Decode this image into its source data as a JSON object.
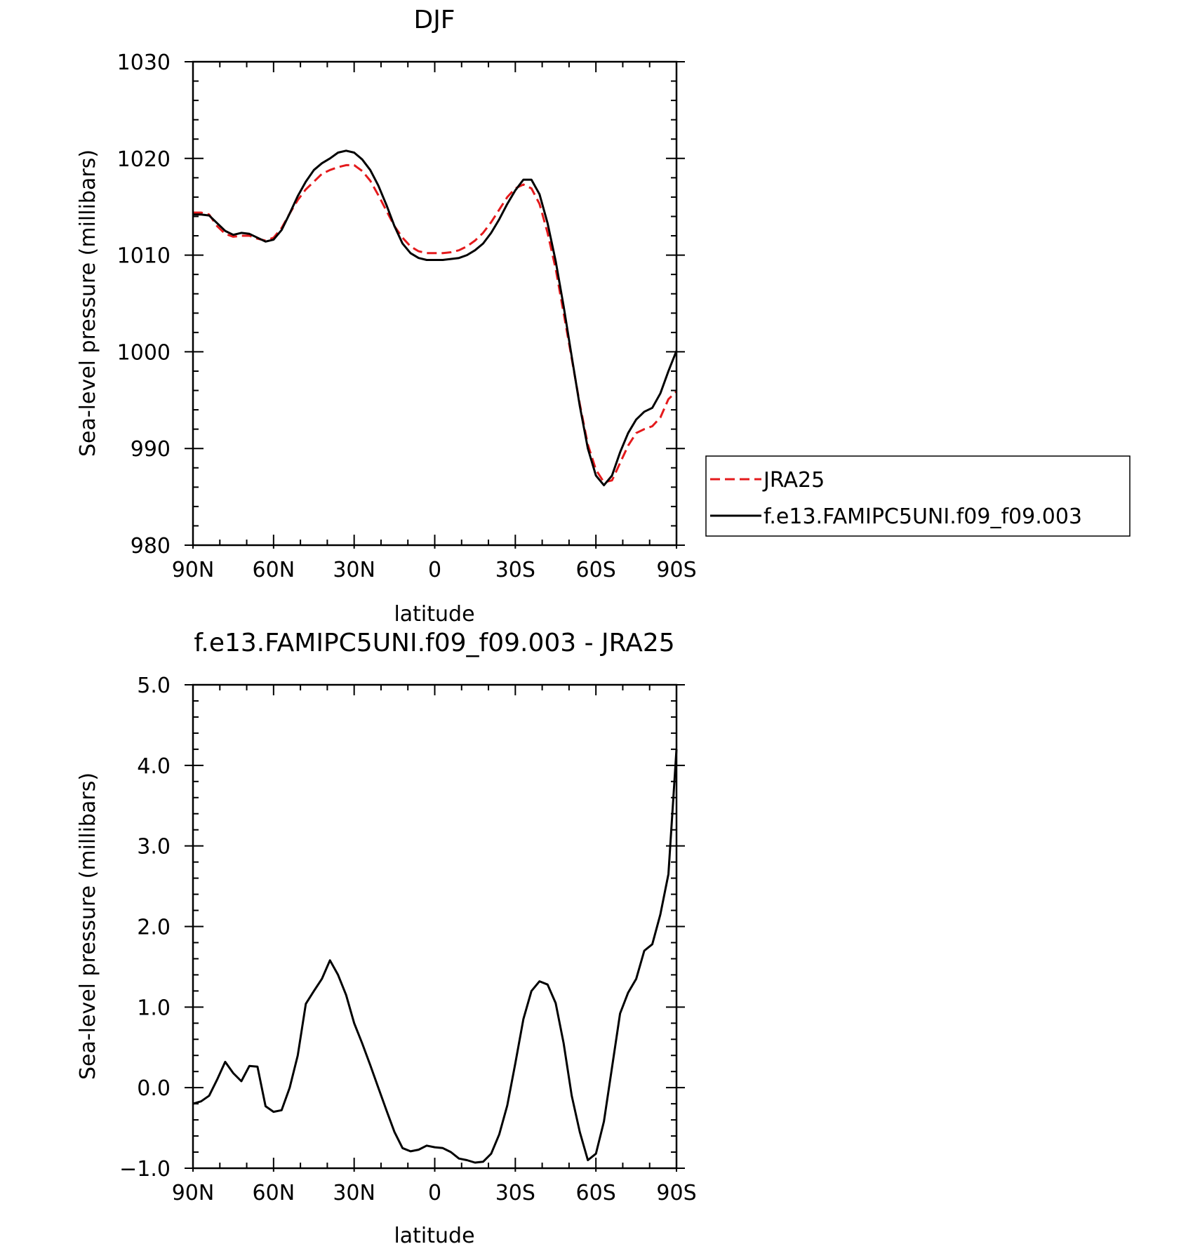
{
  "chart_data": [
    {
      "type": "line",
      "title": "DJF",
      "xlabel": "latitude",
      "ylabel": "Sea-level pressure (millibars)",
      "xlim": [
        90,
        -90
      ],
      "ylim": [
        980,
        1030
      ],
      "x_ticks": [
        {
          "value": 90,
          "label": "90N"
        },
        {
          "value": 60,
          "label": "60N"
        },
        {
          "value": 30,
          "label": "30N"
        },
        {
          "value": 0,
          "label": "0"
        },
        {
          "value": -30,
          "label": "30S"
        },
        {
          "value": -60,
          "label": "60S"
        },
        {
          "value": -90,
          "label": "90S"
        }
      ],
      "y_ticks": [
        {
          "value": 1030,
          "label": "1030"
        },
        {
          "value": 1020,
          "label": "1020"
        },
        {
          "value": 1010,
          "label": "1010"
        },
        {
          "value": 1000,
          "label": "1000"
        },
        {
          "value": 990,
          "label": "990"
        },
        {
          "value": 980,
          "label": "980"
        }
      ],
      "grid": false,
      "legend_position": "right",
      "series": [
        {
          "name": "JRA25",
          "color": "#e41a1c",
          "dash": "dashed",
          "x": [
            90,
            87,
            84,
            81,
            78,
            75,
            72,
            69,
            66,
            63,
            60,
            57,
            54,
            51,
            48,
            45,
            42,
            39,
            36,
            33,
            30,
            27,
            24,
            21,
            18,
            15,
            12,
            9,
            6,
            3,
            0,
            -3,
            -6,
            -9,
            -12,
            -15,
            -18,
            -21,
            -24,
            -27,
            -30,
            -33,
            -36,
            -39,
            -42,
            -45,
            -48,
            -51,
            -54,
            -57,
            -60,
            -63,
            -66,
            -69,
            -72,
            -75,
            -78,
            -81,
            -84,
            -87,
            -90
          ],
          "y": [
            1014.4,
            1014.4,
            1014.2,
            1013.0,
            1012.2,
            1011.9,
            1012.0,
            1012.0,
            1011.7,
            1011.5,
            1011.8,
            1012.8,
            1014.3,
            1015.7,
            1016.8,
            1017.6,
            1018.4,
            1018.8,
            1019.1,
            1019.3,
            1019.3,
            1018.7,
            1017.7,
            1016.2,
            1014.6,
            1013.0,
            1011.8,
            1010.9,
            1010.4,
            1010.2,
            1010.2,
            1010.2,
            1010.3,
            1010.5,
            1010.9,
            1011.5,
            1012.3,
            1013.4,
            1014.7,
            1016.0,
            1016.9,
            1017.3,
            1016.9,
            1015.3,
            1012.3,
            1008.6,
            1004.0,
            999.3,
            994.6,
            990.4,
            987.8,
            986.5,
            986.7,
            988.5,
            990.3,
            991.6,
            992.0,
            992.3,
            993.2,
            995.1,
            995.9
          ]
        },
        {
          "name": "f.e13.FAMIPC5UNI.f09_f09.003",
          "color": "#000000",
          "dash": "solid",
          "x": [
            90,
            87,
            84,
            81,
            78,
            75,
            72,
            69,
            66,
            63,
            60,
            57,
            54,
            51,
            48,
            45,
            42,
            39,
            36,
            33,
            30,
            27,
            24,
            21,
            18,
            15,
            12,
            9,
            6,
            3,
            0,
            -3,
            -6,
            -9,
            -12,
            -15,
            -18,
            -21,
            -24,
            -27,
            -30,
            -33,
            -36,
            -39,
            -42,
            -45,
            -48,
            -51,
            -54,
            -57,
            -60,
            -63,
            -66,
            -69,
            -72,
            -75,
            -78,
            -81,
            -84,
            -87,
            -90
          ],
          "y": [
            1014.2,
            1014.2,
            1014.1,
            1013.3,
            1012.5,
            1012.1,
            1012.3,
            1012.2,
            1011.8,
            1011.4,
            1011.6,
            1012.6,
            1014.3,
            1016.1,
            1017.6,
            1018.8,
            1019.5,
            1020.0,
            1020.6,
            1020.8,
            1020.6,
            1019.9,
            1018.8,
            1017.2,
            1015.2,
            1013.0,
            1011.2,
            1010.2,
            1009.7,
            1009.5,
            1009.5,
            1009.5,
            1009.6,
            1009.7,
            1010.0,
            1010.5,
            1011.2,
            1012.3,
            1013.7,
            1015.3,
            1016.7,
            1017.8,
            1017.8,
            1016.3,
            1013.3,
            1009.4,
            1004.7,
            999.5,
            994.4,
            990.0,
            987.2,
            986.2,
            987.2,
            989.6,
            991.6,
            993.0,
            993.8,
            994.2,
            995.7,
            998.0,
            1000.1
          ]
        }
      ]
    },
    {
      "type": "line",
      "title": "f.e13.FAMIPC5UNI.f09_f09.003 - JRA25",
      "xlabel": "latitude",
      "ylabel": "Sea-level pressure (millibars)",
      "xlim": [
        90,
        -90
      ],
      "ylim": [
        -1.0,
        5.0
      ],
      "x_ticks": [
        {
          "value": 90,
          "label": "90N"
        },
        {
          "value": 60,
          "label": "60N"
        },
        {
          "value": 30,
          "label": "30N"
        },
        {
          "value": 0,
          "label": "0"
        },
        {
          "value": -30,
          "label": "30S"
        },
        {
          "value": -60,
          "label": "60S"
        },
        {
          "value": -90,
          "label": "90S"
        }
      ],
      "y_ticks": [
        {
          "value": 5.0,
          "label": "5.0"
        },
        {
          "value": 4.0,
          "label": "4.0"
        },
        {
          "value": 3.0,
          "label": "3.0"
        },
        {
          "value": 2.0,
          "label": "2.0"
        },
        {
          "value": 1.0,
          "label": "1.0"
        },
        {
          "value": 0.0,
          "label": "0.0"
        },
        {
          "value": -1.0,
          "label": "−1.0"
        }
      ],
      "grid": false,
      "series": [
        {
          "color": "#000000",
          "dash": "solid",
          "x": [
            90,
            87,
            84,
            81,
            78,
            75,
            72,
            69,
            66,
            63,
            60,
            57,
            54,
            51,
            48,
            45,
            42,
            39,
            36,
            33,
            30,
            27,
            24,
            21,
            18,
            15,
            12,
            9,
            6,
            3,
            0,
            -3,
            -6,
            -9,
            -12,
            -15,
            -18,
            -21,
            -24,
            -27,
            -30,
            -33,
            -36,
            -39,
            -42,
            -45,
            -48,
            -51,
            -54,
            -57,
            -60,
            -63,
            -66,
            -69,
            -72,
            -75,
            -78,
            -81,
            -84,
            -87,
            -90
          ],
          "y": [
            -0.2,
            -0.17,
            -0.1,
            0.1,
            0.32,
            0.18,
            0.08,
            0.27,
            0.26,
            -0.23,
            -0.3,
            -0.28,
            0.0,
            0.4,
            1.04,
            1.2,
            1.35,
            1.58,
            1.4,
            1.15,
            0.8,
            0.55,
            0.28,
            0.0,
            -0.28,
            -0.55,
            -0.75,
            -0.79,
            -0.77,
            -0.72,
            -0.74,
            -0.75,
            -0.8,
            -0.88,
            -0.9,
            -0.93,
            -0.92,
            -0.82,
            -0.58,
            -0.22,
            0.3,
            0.85,
            1.2,
            1.32,
            1.28,
            1.05,
            0.55,
            -0.1,
            -0.55,
            -0.9,
            -0.82,
            -0.42,
            0.25,
            0.92,
            1.18,
            1.35,
            1.7,
            1.78,
            2.15,
            2.65,
            4.2
          ]
        }
      ]
    }
  ]
}
